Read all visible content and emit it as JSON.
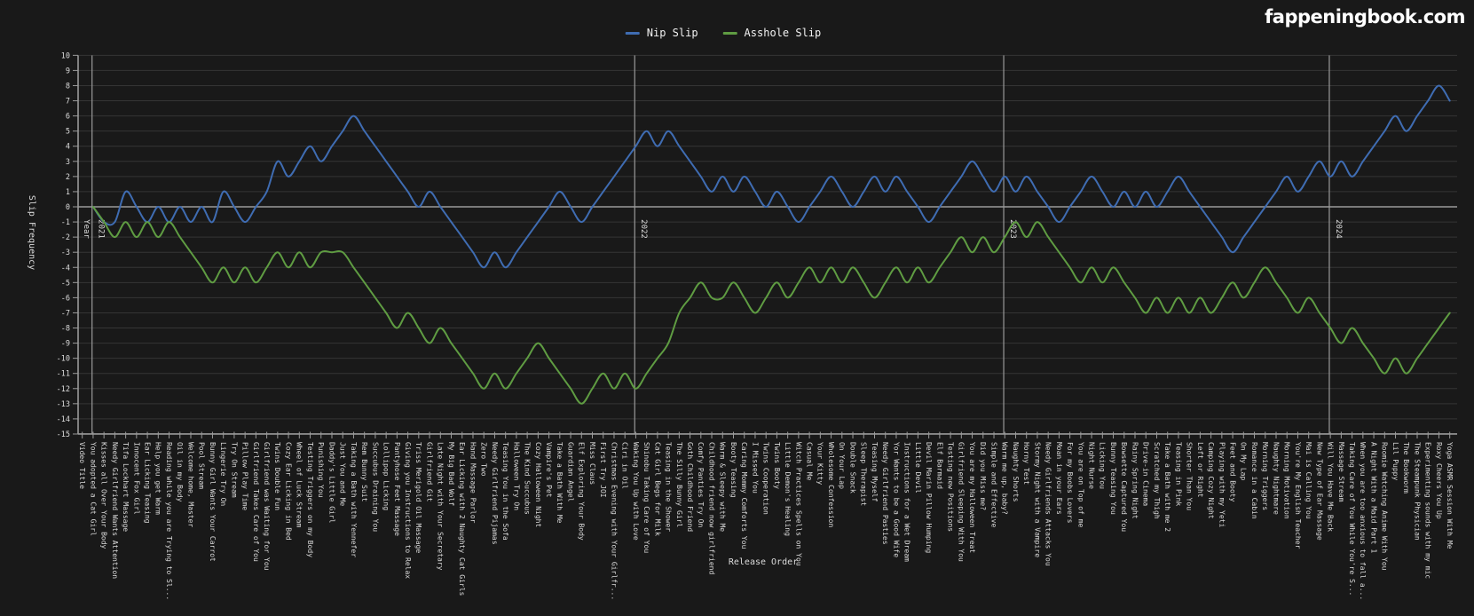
{
  "site": {
    "logo": "fappeningbook.com"
  },
  "chart_data": {
    "type": "line",
    "title": "",
    "xlabel": "Release Order",
    "ylabel": "Slip Frequency",
    "year_axis_title": "Year",
    "ylim": [
      -15,
      10
    ],
    "y_tick_step": 1,
    "grid": true,
    "legend_position": "top",
    "x_tick_label_rotation": 90,
    "background": "#191919",
    "grid_color": "#353535",
    "axis_color": "#9a9a9a",
    "categories": [
      "Video Title",
      "You adopted a Cat Girl",
      "Kisses all Over Your Body",
      "Needy Girlfriend Wants Attention",
      "Tifa Lockhart Massage",
      "Innocent Fox Girl",
      "Ear Licking Teasing",
      "Help you get Warm",
      "Reading while you are Trying to Sl...",
      "Oil in my Body",
      "Welcome home, Master",
      "Pool Stream",
      "Bunny Girl Wants Your Carrot",
      "Lingerie Try On",
      "Try On Stream",
      "Pillow Play Time",
      "Girlfriend Takes Care of You",
      "Girlfriend was Waiting for You",
      "Twins Double Fun",
      "Cozy Ear Licking in Bed",
      "Wheel of Luck Stream",
      "Testing Triggers on my Body",
      "Punishing You",
      "Daddy's Little Girl",
      "Just You and Me",
      "Taking a Bath with Yennefer",
      "Rem Bunny Suit",
      "Succubus Draining You",
      "Lollipop Licking",
      "Pantyhose Feet Massage",
      "Giving you Instructions to Relax",
      "Triss Merigold Oil Massage",
      "Girlfriend Git",
      "Late Night with Your Secretary",
      "My Big Bad Wolf",
      "Ear Licking with 2 Naughty Cat Girls",
      "Hand Massage Parlor",
      "Zero Two",
      "Needy Girlfriend Pijamas",
      "Teasing You in the Sofa",
      "Halloween Try On",
      "The Kind Succubus",
      "Cozy Halloween Night",
      "Vampire's Pet",
      "Take a Bath With Me",
      "Guardian Angel",
      "Elf Exploring Your Body",
      "Miss Claus",
      "First Try JOI",
      "Christmas Evening with Your Girlfr...",
      "Ciri in Oil",
      "Waking You Up with Love",
      "Shinobu Taking Care of You",
      "Cat Girl Begs for Milk",
      "Teasing in the Shower",
      "The Silly Bunny Girl",
      "Goth Childhood Friend",
      "Comfy Panties Try On",
      "Childhood friend now girlfriend",
      "Warm & Sleepy with Me",
      "Booty Teasing",
      "Caring Mommy Comforts You",
      "I Missed You",
      "Twins Cooperation",
      "Twins Booty",
      "Little Demon's Healing",
      "Witch Practices Spells on You",
      "Casual Me",
      "Your Kitty",
      "Wholesome Confession",
      "On Your Lap",
      "Double Snack",
      "Sleep Therapist",
      "Teasing Myself",
      "Needy Girlfriend Pasties",
      "Yor Wants to be a Good Wife",
      "Instructions for a Wet Dream",
      "Little Devil",
      "Devil Marin Pillow Humping",
      "Elf Barmaid",
      "Testing new Positions",
      "Girlfriend Sleeping With You",
      "You are my Halloween Treat",
      "Did you Miss me?",
      "Simple and Effective",
      "Warm me up, baby?",
      "Naughty Shorts",
      "Horny Test",
      "Stormy Night with a Vampire",
      "Needy Girlfriends Attacks You",
      "Moan in your Ears",
      "For my Boobs Lovers",
      "You are on Top of me",
      "Night Nurse",
      "Licking You",
      "Bunny Teasing You",
      "Bowsette Captured You",
      "Rainy Spring Night",
      "Drive-in Cinema",
      "Scratched my Thigh",
      "Take a Bath with me 2",
      "Teasing in Pink",
      "Shorter Than You",
      "Left or Right",
      "Camping Cozy Night",
      "Playing with my Yeti",
      "Feet and Booty",
      "On My Lap",
      "Romance in a Cabin",
      "Morning Triggers",
      "Naughty Nightmare",
      "Morning Motivation",
      "You're My English Teacher",
      "Mai is Calling You",
      "New Type of Ear Massage",
      "Will You Have Me Back",
      "Massage Stream",
      "Taking Care of You While You're S...",
      "When you are too anxious to fall a...",
      "A Night With a Maid Part 1",
      "Roomie Watching Anime With You",
      "Lil Puppy",
      "The Bookworm",
      "The Steampunk Physician",
      "Experimenting sounds with my mic",
      "Roxy Cheers You Up",
      "Yoga ASMR Session With Me"
    ],
    "series": [
      {
        "name": "Nip Slip",
        "color": "#3f6cb2",
        "values": [
          null,
          0,
          -1,
          -1,
          1,
          0,
          -1,
          0,
          -1,
          0,
          -1,
          0,
          -1,
          1,
          0,
          -1,
          0,
          1,
          3,
          2,
          3,
          4,
          3,
          4,
          5,
          6,
          5,
          4,
          3,
          2,
          1,
          0,
          1,
          0,
          -1,
          -2,
          -3,
          -4,
          -3,
          -4,
          -3,
          -2,
          -1,
          0,
          1,
          0,
          -1,
          0,
          1,
          2,
          3,
          4,
          5,
          4,
          5,
          4,
          3,
          2,
          1,
          2,
          1,
          2,
          1,
          0,
          1,
          0,
          -1,
          0,
          1,
          2,
          1,
          0,
          1,
          2,
          1,
          2,
          1,
          0,
          -1,
          0,
          1,
          2,
          3,
          2,
          1,
          2,
          1,
          2,
          1,
          0,
          -1,
          0,
          1,
          2,
          1,
          0,
          1,
          0,
          1,
          0,
          1,
          2,
          1,
          0,
          -1,
          -2,
          -3,
          -2,
          -1,
          0,
          1,
          2,
          1,
          2,
          3,
          2,
          3,
          2,
          3,
          4,
          5,
          6,
          5,
          6,
          7,
          8,
          7
        ]
      },
      {
        "name": "Asshole Slip",
        "color": "#5f9c42",
        "values": [
          null,
          0,
          -1,
          -2,
          -1,
          -2,
          -1,
          -2,
          -1,
          -2,
          -3,
          -4,
          -5,
          -4,
          -5,
          -4,
          -5,
          -4,
          -3,
          -4,
          -3,
          -4,
          -3,
          -3,
          -3,
          -4,
          -5,
          -6,
          -7,
          -8,
          -7,
          -8,
          -9,
          -8,
          -9,
          -10,
          -11,
          -12,
          -11,
          -12,
          -11,
          -10,
          -9,
          -10,
          -11,
          -12,
          -13,
          -12,
          -11,
          -12,
          -11,
          -12,
          -11,
          -10,
          -9,
          -7,
          -6,
          -5,
          -6,
          -6,
          -5,
          -6,
          -7,
          -6,
          -5,
          -6,
          -5,
          -4,
          -5,
          -4,
          -5,
          -4,
          -5,
          -6,
          -5,
          -4,
          -5,
          -4,
          -5,
          -4,
          -3,
          -2,
          -3,
          -2,
          -3,
          -2,
          -1,
          -2,
          -1,
          -2,
          -3,
          -4,
          -5,
          -4,
          -5,
          -4,
          -5,
          -6,
          -7,
          -6,
          -7,
          -6,
          -7,
          -6,
          -7,
          -6,
          -5,
          -6,
          -5,
          -4,
          -5,
          -6,
          -7,
          -6,
          -7,
          -8,
          -9,
          -8,
          -9,
          -10,
          -11,
          -10,
          -11,
          -10,
          -9,
          -8,
          -7
        ]
      }
    ],
    "year_markers": [
      {
        "label": "2021",
        "start_index": 1
      },
      {
        "label": "2022",
        "start_index": 51
      },
      {
        "label": "2023",
        "start_index": 85
      },
      {
        "label": "2024",
        "start_index": 115
      }
    ]
  }
}
